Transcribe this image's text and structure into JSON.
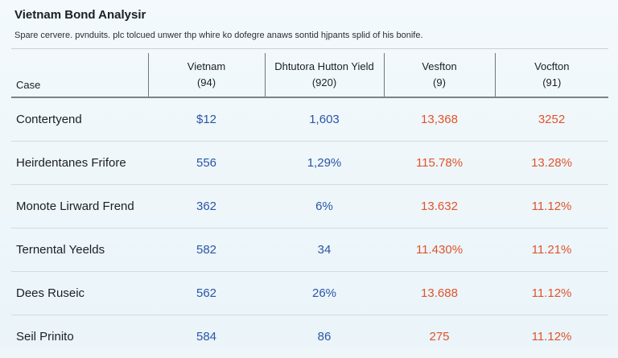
{
  "header": {
    "title": "Vietnam Bond Analysir",
    "subtitle": "Spare cervere. pvnduits. plc tolcued unwer thp whire ko dofegre anaws sontid hjpants splid of his bonife."
  },
  "table": {
    "case_header": "Case",
    "columns": [
      {
        "name": "Vietnam",
        "sub": "(94)"
      },
      {
        "name": "Dhtutora Hutton Yield",
        "sub": "(920)"
      },
      {
        "name": "Vesfton",
        "sub": "(9)"
      },
      {
        "name": "Vocfton",
        "sub": "(91)"
      }
    ],
    "rows": [
      {
        "case": "Contertyend",
        "values": [
          "$12",
          "1,603",
          "13,368",
          "3252"
        ]
      },
      {
        "case": "Heirdentanes Frifore",
        "values": [
          "556",
          "1,29%",
          "115.78%",
          "13.28%"
        ]
      },
      {
        "case": "Monote Lirward Frend",
        "values": [
          "362",
          "6%",
          "13.632",
          "11.12%"
        ]
      },
      {
        "case": "Ternental Yeelds",
        "values": [
          "582",
          "34",
          "11.430%",
          "11.21%"
        ]
      },
      {
        "case": "Dees Ruseic",
        "values": [
          "562",
          "26%",
          "13.688",
          "11.12%"
        ]
      },
      {
        "case": "Seil Prinito",
        "values": [
          "584",
          "86",
          "275",
          "11.12%"
        ]
      }
    ]
  },
  "colors": {
    "blue_values": "#2b55a6",
    "red_values": "#e0542c",
    "background": "#eef6fa"
  }
}
